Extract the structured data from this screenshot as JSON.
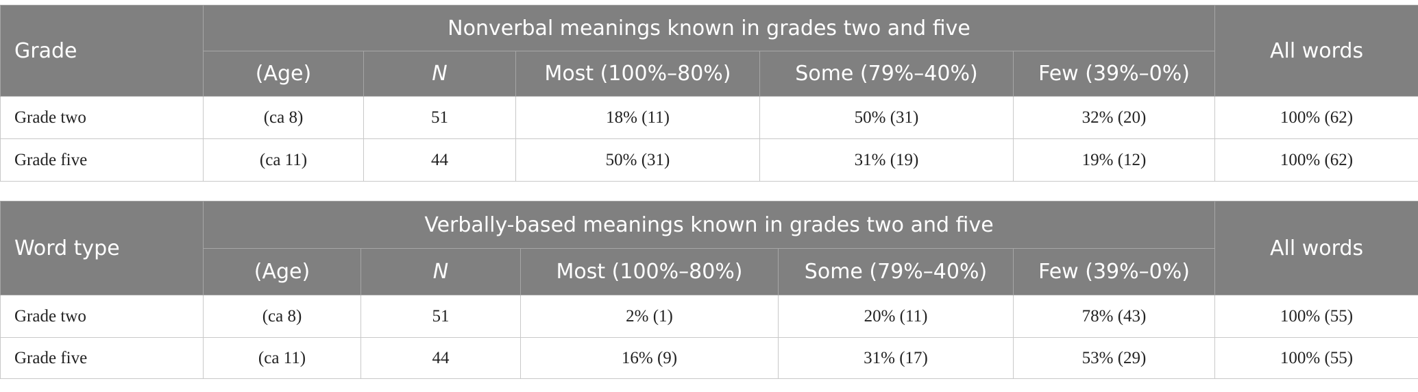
{
  "tables": [
    {
      "stub_header": "Grade",
      "group_header": "Nonverbal meanings known in grades two and five",
      "total_header": "All words",
      "columns": [
        "(Age)",
        "N",
        "Most (100%–80%)",
        "Some (79%–40%)",
        "Few (39%–0%)"
      ],
      "rows": [
        [
          "Grade two",
          "(ca 8)",
          "51",
          "18% (11)",
          "50% (31)",
          "32% (20)",
          "100% (62)"
        ],
        [
          "Grade five",
          "(ca 11)",
          "44",
          "50% (31)",
          "31% (19)",
          "19% (12)",
          "100% (62)"
        ]
      ]
    },
    {
      "stub_header": "Word type",
      "group_header": "Verbally-based meanings known in grades two and five",
      "total_header": "All words",
      "columns": [
        "(Age)",
        "N",
        "Most (100%–80%)",
        "Some (79%–40%)",
        "Few (39%–0%)"
      ],
      "rows": [
        [
          "Grade two",
          "(ca 8)",
          "51",
          "2% (1)",
          "20% (11)",
          "78% (43)",
          "100% (55)"
        ],
        [
          "Grade five",
          "(ca 11)",
          "44",
          "16% (9)",
          "31% (17)",
          "53% (29)",
          "100% (55)"
        ]
      ]
    }
  ]
}
